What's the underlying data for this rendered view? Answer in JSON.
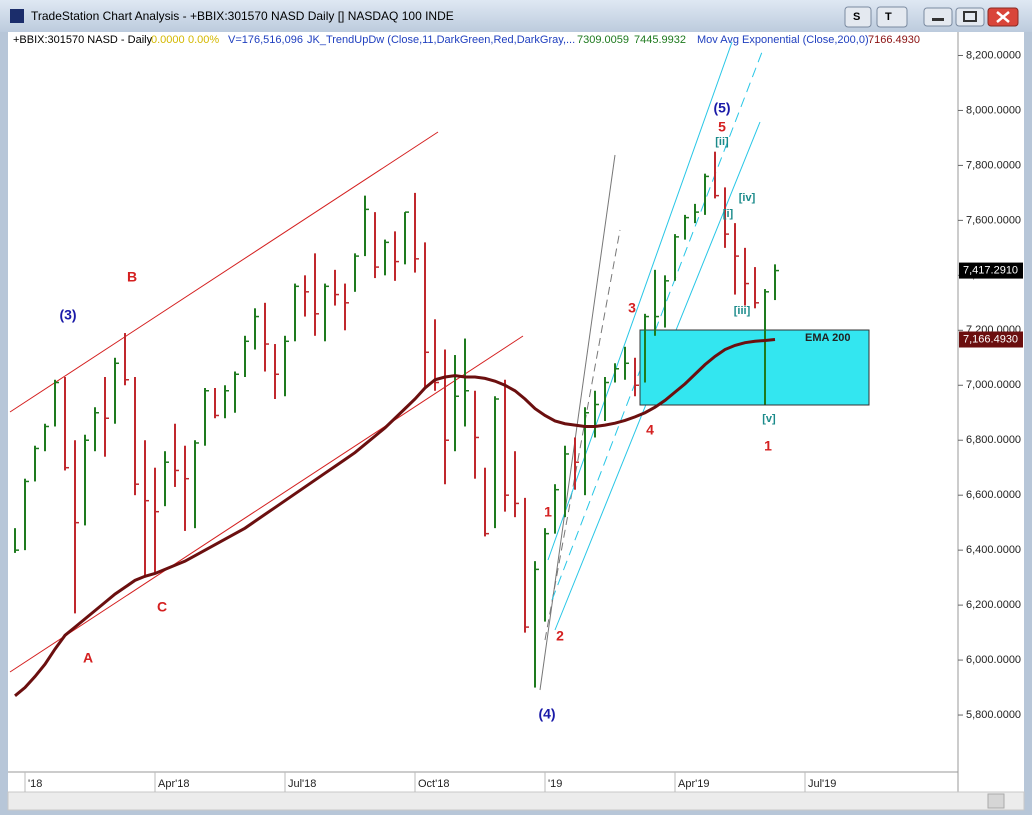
{
  "window": {
    "title": "TradeStation Chart Analysis - +BBIX:301570 NASD Daily [] NASDAQ 100 INDE",
    "buttons": [
      "S",
      "T"
    ]
  },
  "header": {
    "symbol": "+BBIX:301570 NASD - Daily",
    "change": "0.0000",
    "change_pct": "0.00%",
    "volume": "V=176,516,096",
    "indicator": "JK_TrendUpDw (Close,11,DarkGreen,Red,DarkGray,...",
    "indicator_value_1": "7309.0059",
    "indicator_value_2": "7445.9932",
    "ma_name": "Mov Avg Exponential (Close,200,0)",
    "ma_value": "7166.4930"
  },
  "chart_data": {
    "type": "ohlc",
    "categories": [
      null,
      "'18",
      null,
      null,
      null,
      null,
      null,
      null,
      null,
      null,
      null,
      null,
      null,
      null,
      "Apr'18",
      null,
      null,
      null,
      null,
      null,
      null,
      null,
      null,
      null,
      null,
      null,
      null,
      "Jul'18",
      null,
      null,
      null,
      null,
      null,
      null,
      null,
      null,
      null,
      null,
      null,
      null,
      "Oct'18",
      null,
      null,
      null,
      null,
      null,
      null,
      null,
      null,
      null,
      null,
      null,
      null,
      "'19",
      null,
      null,
      null,
      null,
      null,
      null,
      null,
      null,
      null,
      null,
      null,
      null,
      "Apr'19",
      null,
      null,
      null,
      null,
      null,
      null,
      null,
      null,
      null,
      null,
      null,
      null,
      "Jul'19",
      null,
      null,
      null,
      null,
      null,
      null,
      null,
      null,
      null,
      null,
      null,
      null,
      null,
      null
    ],
    "high": [
      6480,
      6660,
      6780,
      6860,
      7020,
      7030,
      6800,
      6820,
      6920,
      7030,
      7100,
      7190,
      7030,
      6800,
      6700,
      6760,
      6860,
      6780,
      6800,
      6990,
      6990,
      7000,
      7050,
      7180,
      7280,
      7300,
      7150,
      7180,
      7370,
      7400,
      7480,
      7370,
      7420,
      7370,
      7480,
      7690,
      7630,
      7530,
      7560,
      7630,
      7700,
      7520,
      7240,
      7130,
      7110,
      7170,
      6980,
      6700,
      6960,
      7020,
      6760,
      6590,
      6360,
      6480,
      6640,
      6780,
      6810,
      6920,
      6980,
      7030,
      7080,
      7140,
      7100,
      7260,
      7420,
      7400,
      7550,
      7620,
      7660,
      7770,
      7850,
      7720,
      7590,
      7500,
      7430,
      7350,
      7440,
      null,
      null,
      null,
      null,
      null,
      null,
      null,
      null,
      null,
      null,
      null,
      null,
      null,
      null,
      null,
      null,
      null
    ],
    "low": [
      6390,
      6400,
      6650,
      6760,
      6850,
      6690,
      6170,
      6490,
      6760,
      6740,
      6860,
      7000,
      6600,
      6300,
      6320,
      6560,
      6630,
      6470,
      6480,
      6780,
      6880,
      6880,
      6900,
      7030,
      7130,
      7050,
      6950,
      6960,
      7160,
      7250,
      7180,
      7160,
      7290,
      7200,
      7340,
      7470,
      7390,
      7400,
      7380,
      7440,
      7410,
      6990,
      6980,
      6640,
      6760,
      6850,
      6660,
      6450,
      6480,
      6540,
      6520,
      6100,
      5900,
      6140,
      6460,
      6520,
      6620,
      6600,
      6810,
      6870,
      7010,
      7020,
      6960,
      7010,
      7180,
      7210,
      7380,
      7530,
      7590,
      7620,
      7680,
      7500,
      7330,
      7290,
      7280,
      6930,
      7310,
      null,
      null,
      null,
      null,
      null,
      null,
      null,
      null,
      null,
      null,
      null,
      null,
      null,
      null,
      null,
      null,
      null
    ],
    "close": [
      6400,
      6650,
      6770,
      6850,
      7010,
      6700,
      6500,
      6800,
      6900,
      6880,
      7080,
      7020,
      6640,
      6580,
      6540,
      6720,
      6690,
      6660,
      6790,
      6980,
      6890,
      6980,
      7040,
      7160,
      7250,
      7150,
      7040,
      7160,
      7360,
      7340,
      7260,
      7360,
      7330,
      7300,
      7470,
      7640,
      7430,
      7520,
      7450,
      7630,
      7460,
      7120,
      7010,
      6800,
      6960,
      6980,
      6810,
      6460,
      6950,
      6600,
      6570,
      6120,
      6330,
      6460,
      6620,
      6750,
      6720,
      6900,
      6930,
      7010,
      7060,
      7080,
      7000,
      7250,
      7250,
      7380,
      7540,
      7610,
      7630,
      7760,
      7690,
      7550,
      7470,
      7370,
      7300,
      7340,
      7417.291,
      null,
      null,
      null,
      null,
      null,
      null,
      null,
      null,
      null,
      null,
      null,
      null,
      null,
      null,
      null,
      null,
      null
    ],
    "close_label": "7,417.2910",
    "up_color": "#1e7a1e",
    "down_color": "#c0282d",
    "ema": {
      "color": "#6b0f0f",
      "value_label": "7,166.4930",
      "values": [
        5870,
        5900,
        5940,
        5985,
        6040,
        6090,
        6120,
        6150,
        6180,
        6210,
        6240,
        6265,
        6290,
        6305,
        6315,
        6330,
        6345,
        6360,
        6380,
        6400,
        6420,
        6440,
        6460,
        6480,
        6505,
        6530,
        6555,
        6580,
        6605,
        6630,
        6655,
        6680,
        6705,
        6730,
        6755,
        6785,
        6815,
        6845,
        6880,
        6915,
        6950,
        6990,
        7020,
        7030,
        7035,
        7030,
        7030,
        7025,
        7015,
        7000,
        6980,
        6950,
        6915,
        6890,
        6870,
        6860,
        6855,
        6850,
        6850,
        6855,
        6862,
        6872,
        6885,
        6900,
        6920,
        6945,
        6975,
        7005,
        7040,
        7075,
        7105,
        7130,
        7145,
        7155,
        7160,
        7163,
        7166.493,
        null,
        null,
        null,
        null,
        null,
        null,
        null,
        null,
        null,
        null,
        null,
        null,
        null,
        null,
        null,
        null,
        null
      ]
    },
    "ylim": [
      5600,
      8300
    ],
    "yticks": [
      {
        "value": 5800,
        "label": "5,800.0000"
      },
      {
        "value": 6000,
        "label": "6,000.0000"
      },
      {
        "value": 6200,
        "label": "6,200.0000"
      },
      {
        "value": 6400,
        "label": "6,400.0000"
      },
      {
        "value": 6600,
        "label": "6,600.0000"
      },
      {
        "value": 6800,
        "label": "6,800.0000"
      },
      {
        "value": 7000,
        "label": "7,000.0000"
      },
      {
        "value": 7200,
        "label": "7,200.0000"
      },
      {
        "value": 7400,
        "label": "7,400.0000"
      },
      {
        "value": 7600,
        "label": "7,600.0000"
      },
      {
        "value": 7800,
        "label": "7,800.0000"
      },
      {
        "value": 8000,
        "label": "8,000.0000"
      },
      {
        "value": 8200,
        "label": "8,200.0000"
      }
    ],
    "annotations": [
      {
        "text": "(3)",
        "color": "#1a1aa8"
      },
      {
        "text": "B",
        "color": "#d42020"
      },
      {
        "text": "A",
        "color": "#d42020"
      },
      {
        "text": "C",
        "color": "#d42020"
      },
      {
        "text": "(4)",
        "color": "#1a1aa8"
      },
      {
        "text": "1",
        "color": "#d42020"
      },
      {
        "text": "2",
        "color": "#d42020"
      },
      {
        "text": "3",
        "color": "#d42020"
      },
      {
        "text": "4",
        "color": "#d42020"
      },
      {
        "text": "(5)",
        "color": "#1a1aa8"
      },
      {
        "text": "5",
        "color": "#d42020"
      },
      {
        "text": "[ii]",
        "color": "#1a8a8a"
      },
      {
        "text": "[i]",
        "color": "#1a8a8a"
      },
      {
        "text": "[iv]",
        "color": "#1a8a8a"
      },
      {
        "text": "[iii]",
        "color": "#1a8a8a"
      },
      {
        "text": "[v]",
        "color": "#1a8a8a"
      },
      {
        "text": "1",
        "color": "#d42020"
      },
      {
        "text": "EMA 200",
        "color": "#222222"
      }
    ]
  }
}
